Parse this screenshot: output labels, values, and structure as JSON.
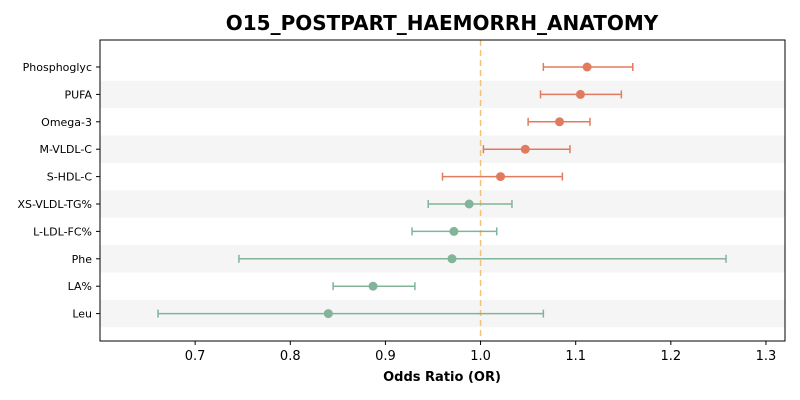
{
  "chart_data": {
    "type": "forest",
    "title": "O15_POSTPART_HAEMORRH_ANATOMY",
    "xlabel": "Odds Ratio (OR)",
    "ylabel": "",
    "xlim": [
      0.6,
      1.32
    ],
    "xticks": [
      0.7,
      0.8,
      0.9,
      1.0,
      1.1,
      1.2,
      1.3
    ],
    "xtick_labels": [
      "0.7",
      "0.8",
      "0.9",
      "1.0",
      "1.1",
      "1.2",
      "1.3"
    ],
    "reference_line": 1.0,
    "grid": false,
    "alternating_row_shading": true,
    "colors": {
      "positive": "#e07b5f",
      "negative": "#82b49a",
      "reference": "#f5c07a",
      "row_shade": "#f5f5f5"
    },
    "rows": [
      {
        "label": "Phosphoglyc",
        "or": 1.112,
        "ci_low": 1.066,
        "ci_high": 1.16
      },
      {
        "label": "PUFA",
        "or": 1.105,
        "ci_low": 1.063,
        "ci_high": 1.148
      },
      {
        "label": "Omega-3",
        "or": 1.083,
        "ci_low": 1.05,
        "ci_high": 1.115
      },
      {
        "label": "M-VLDL-C",
        "or": 1.047,
        "ci_low": 1.003,
        "ci_high": 1.094
      },
      {
        "label": "S-HDL-C",
        "or": 1.021,
        "ci_low": 0.96,
        "ci_high": 1.086
      },
      {
        "label": "XS-VLDL-TG%",
        "or": 0.988,
        "ci_low": 0.945,
        "ci_high": 1.033
      },
      {
        "label": "L-LDL-FC%",
        "or": 0.972,
        "ci_low": 0.928,
        "ci_high": 1.017
      },
      {
        "label": "Phe",
        "or": 0.97,
        "ci_low": 0.746,
        "ci_high": 1.258
      },
      {
        "label": "LA%",
        "or": 0.887,
        "ci_low": 0.845,
        "ci_high": 0.931
      },
      {
        "label": "Leu",
        "or": 0.84,
        "ci_low": 0.661,
        "ci_high": 1.066
      }
    ]
  }
}
